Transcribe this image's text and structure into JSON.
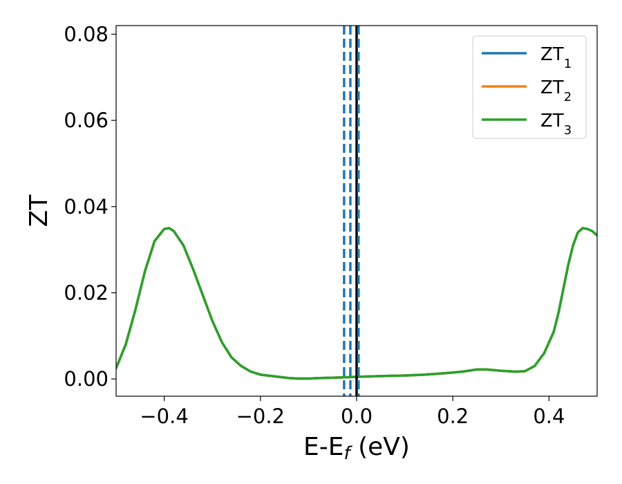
{
  "chart_data": {
    "type": "line",
    "xlabel": "E-E",
    "xlabel_sub": "f",
    "xlabel_unit": " (eV)",
    "ylabel": "ZT",
    "xlim": [
      -0.5,
      0.5
    ],
    "ylim": [
      -0.004,
      0.082
    ],
    "xticks": [
      -0.4,
      -0.2,
      0.0,
      0.2,
      0.4
    ],
    "xtick_labels": [
      "−0.4",
      "−0.2",
      "0.0",
      "0.2",
      "0.4"
    ],
    "yticks": [
      0.0,
      0.02,
      0.04,
      0.06,
      0.08
    ],
    "ytick_labels": [
      "0.00",
      "0.02",
      "0.04",
      "0.06",
      "0.08"
    ],
    "grid": false,
    "legend_position": "top-right",
    "series": [
      {
        "name": "ZT",
        "name_sub": "1",
        "color": "#1f77b4",
        "x": [
          -0.5,
          -0.48,
          -0.46,
          -0.44,
          -0.42,
          -0.4,
          -0.39,
          -0.38,
          -0.36,
          -0.34,
          -0.32,
          -0.3,
          -0.28,
          -0.26,
          -0.24,
          -0.22,
          -0.2,
          -0.17,
          -0.14,
          -0.12,
          -0.1,
          -0.08,
          -0.05,
          -0.02,
          0.0,
          0.03,
          0.06,
          0.1,
          0.14,
          0.18,
          0.22,
          0.25,
          0.27,
          0.3,
          0.33,
          0.35,
          0.37,
          0.39,
          0.41,
          0.42,
          0.43,
          0.44,
          0.45,
          0.46,
          0.47,
          0.48,
          0.49,
          0.5
        ],
        "y": [
          0.0025,
          0.008,
          0.016,
          0.025,
          0.032,
          0.0348,
          0.035,
          0.0343,
          0.031,
          0.0255,
          0.0195,
          0.0135,
          0.0085,
          0.005,
          0.003,
          0.0017,
          0.001,
          0.0006,
          0.0002,
          0.0001,
          0.0001,
          0.0002,
          0.0003,
          0.0004,
          0.0005,
          0.0006,
          0.0007,
          0.0008,
          0.001,
          0.0013,
          0.0017,
          0.0022,
          0.0022,
          0.0019,
          0.0017,
          0.0018,
          0.003,
          0.006,
          0.011,
          0.0155,
          0.021,
          0.0265,
          0.031,
          0.034,
          0.035,
          0.0348,
          0.0343,
          0.0333
        ]
      },
      {
        "name": "ZT",
        "name_sub": "2",
        "color": "#ff7f0e",
        "x": [
          -0.5,
          -0.48,
          -0.46,
          -0.44,
          -0.42,
          -0.4,
          -0.39,
          -0.38,
          -0.36,
          -0.34,
          -0.32,
          -0.3,
          -0.28,
          -0.26,
          -0.24,
          -0.22,
          -0.2,
          -0.17,
          -0.14,
          -0.12,
          -0.1,
          -0.08,
          -0.05,
          -0.02,
          0.0,
          0.03,
          0.06,
          0.1,
          0.14,
          0.18,
          0.22,
          0.25,
          0.27,
          0.3,
          0.33,
          0.35,
          0.37,
          0.39,
          0.41,
          0.42,
          0.43,
          0.44,
          0.45,
          0.46,
          0.47,
          0.48,
          0.49,
          0.5
        ],
        "y": [
          0.0025,
          0.008,
          0.016,
          0.025,
          0.032,
          0.0348,
          0.035,
          0.0343,
          0.031,
          0.0255,
          0.0195,
          0.0135,
          0.0085,
          0.005,
          0.003,
          0.0017,
          0.001,
          0.0006,
          0.0002,
          0.0001,
          0.0001,
          0.0002,
          0.0003,
          0.0004,
          0.0005,
          0.0006,
          0.0007,
          0.0008,
          0.001,
          0.0013,
          0.0017,
          0.0022,
          0.0022,
          0.0019,
          0.0017,
          0.0018,
          0.003,
          0.006,
          0.011,
          0.0155,
          0.021,
          0.0265,
          0.031,
          0.034,
          0.035,
          0.0348,
          0.0343,
          0.0333
        ]
      },
      {
        "name": "ZT",
        "name_sub": "3",
        "color": "#2ca02c",
        "x": [
          -0.5,
          -0.48,
          -0.46,
          -0.44,
          -0.42,
          -0.4,
          -0.39,
          -0.38,
          -0.36,
          -0.34,
          -0.32,
          -0.3,
          -0.28,
          -0.26,
          -0.24,
          -0.22,
          -0.2,
          -0.17,
          -0.14,
          -0.12,
          -0.1,
          -0.08,
          -0.05,
          -0.02,
          0.0,
          0.03,
          0.06,
          0.1,
          0.14,
          0.18,
          0.22,
          0.25,
          0.27,
          0.3,
          0.33,
          0.35,
          0.37,
          0.39,
          0.41,
          0.42,
          0.43,
          0.44,
          0.45,
          0.46,
          0.47,
          0.48,
          0.49,
          0.5
        ],
        "y": [
          0.0025,
          0.008,
          0.016,
          0.025,
          0.032,
          0.0348,
          0.035,
          0.0343,
          0.031,
          0.0255,
          0.0195,
          0.0135,
          0.0085,
          0.005,
          0.003,
          0.0017,
          0.001,
          0.0006,
          0.0002,
          0.0001,
          0.0001,
          0.0002,
          0.0003,
          0.0004,
          0.0005,
          0.0006,
          0.0007,
          0.0008,
          0.001,
          0.0013,
          0.0017,
          0.0022,
          0.0022,
          0.0019,
          0.0017,
          0.0018,
          0.003,
          0.006,
          0.011,
          0.0155,
          0.021,
          0.0265,
          0.031,
          0.034,
          0.035,
          0.0348,
          0.0343,
          0.0333
        ]
      }
    ],
    "vertical_lines": [
      {
        "x": -0.026,
        "color": "#1f77b4",
        "style": "dashed"
      },
      {
        "x": -0.013,
        "color": "#1f77b4",
        "style": "dashed"
      },
      {
        "x": 0.0,
        "color": "#000000",
        "style": "solid"
      },
      {
        "x": 0.004,
        "color": "#1f77b4",
        "style": "dashed"
      }
    ]
  }
}
